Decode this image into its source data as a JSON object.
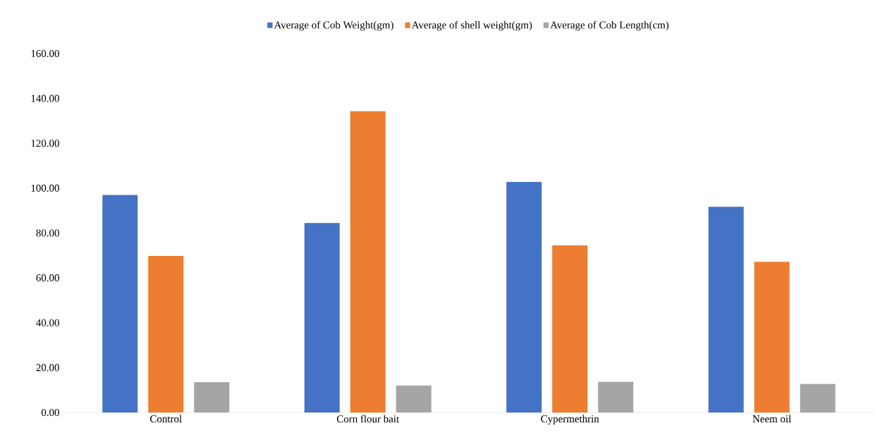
{
  "chart_data": {
    "type": "bar",
    "categories": [
      "Control",
      "Corn flour bait",
      "Cypermethrin",
      "Neem oil"
    ],
    "series": [
      {
        "name": "Average of Cob Weight(gm)",
        "color": "#4472c4",
        "values": [
          97.0,
          84.5,
          102.8,
          91.7
        ]
      },
      {
        "name": "Average of shell weight(gm)",
        "color": "#ed7d31",
        "values": [
          69.8,
          134.3,
          74.5,
          67.2
        ]
      },
      {
        "name": "Average of Cob Length(cm)",
        "color": "#a5a5a5",
        "values": [
          13.5,
          12.0,
          13.7,
          12.7
        ]
      }
    ],
    "ylim": [
      0,
      160
    ],
    "yticks": [
      {
        "value": 0,
        "label": "0.00"
      },
      {
        "value": 20,
        "label": "20.00"
      },
      {
        "value": 40,
        "label": "40.00"
      },
      {
        "value": 60,
        "label": "60.00"
      },
      {
        "value": 80,
        "label": "80.00"
      },
      {
        "value": 100,
        "label": "100.00"
      },
      {
        "value": 120,
        "label": "120.00"
      },
      {
        "value": 140,
        "label": "140.00"
      },
      {
        "value": 160,
        "label": "160.00"
      }
    ],
    "legend": "top"
  }
}
